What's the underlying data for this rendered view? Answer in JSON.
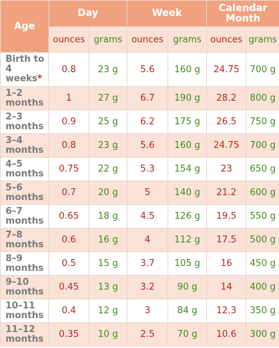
{
  "header": {
    "age": "Age",
    "day": "Day",
    "week": "Week",
    "month": "Calendar Month",
    "ounces": "ounces",
    "grams": "grams"
  },
  "rows": [
    {
      "age": "Birth to 4 weeks",
      "note": "*",
      "day_oz": "0.8",
      "day_g": "23 g",
      "week_oz": "5.6",
      "week_g": "160 g",
      "month_oz": "24.75",
      "month_g": "700 g"
    },
    {
      "age": "1–2 months",
      "day_oz": "1",
      "day_g": "27 g",
      "week_oz": "6.7",
      "week_g": "190 g",
      "month_oz": "28.2",
      "month_g": "800 g"
    },
    {
      "age": "2–3 months",
      "day_oz": "0.9",
      "day_g": "25 g",
      "week_oz": "6.2",
      "week_g": "175 g",
      "month_oz": "26.5",
      "month_g": "750 g"
    },
    {
      "age": "3–4 months",
      "day_oz": "0.8",
      "day_g": "23 g",
      "week_oz": "5.6",
      "week_g": "160 g",
      "month_oz": "24.75",
      "month_g": "700 g"
    },
    {
      "age": "4–5 months",
      "day_oz": "0.75",
      "day_g": "22 g",
      "week_oz": "5.3",
      "week_g": "154 g",
      "month_oz": "23",
      "month_g": "650 g"
    },
    {
      "age": "5–6 months",
      "day_oz": "0.7",
      "day_g": "20 g",
      "week_oz": "5",
      "week_g": "140 g",
      "month_oz": "21.2",
      "month_g": "600 g"
    },
    {
      "age": "6–7 months",
      "day_oz": "0.65",
      "day_g": "18 g",
      "week_oz": "4.5",
      "week_g": "126 g",
      "month_oz": "19.5",
      "month_g": "550 g"
    },
    {
      "age": "7–8 months",
      "day_oz": "0.6",
      "day_g": "16 g",
      "week_oz": "4",
      "week_g": "112 g",
      "month_oz": "17.5",
      "month_g": "500 g"
    },
    {
      "age": "8–9 months",
      "day_oz": "0.5",
      "day_g": "15 g",
      "week_oz": "3.7",
      "week_g": "105 g",
      "month_oz": "16",
      "month_g": "450 g"
    },
    {
      "age": "9–10 months",
      "day_oz": "0.45",
      "day_g": "13 g",
      "week_oz": "3.2",
      "week_g": "90 g",
      "month_oz": "14",
      "month_g": "400 g"
    },
    {
      "age": "10–11 months",
      "day_oz": "0.4",
      "day_g": "12 g",
      "week_oz": "3",
      "week_g": "84 g",
      "month_oz": "12.3",
      "month_g": "350 g"
    },
    {
      "age": "11–12 months",
      "day_oz": "0.35",
      "day_g": "10 g",
      "week_oz": "2.5",
      "week_g": "70 g",
      "month_oz": "10.6",
      "month_g": "300 g"
    }
  ],
  "colors": {
    "header_bg": "#f0a27f",
    "header_text": "#ffffff",
    "stripe_bg": "#fbe2d7",
    "ounces_text": "#b5271b",
    "grams_text": "#3f8a21",
    "age_text": "#7a7a7a",
    "footnote_marker": "#d92b2b"
  }
}
